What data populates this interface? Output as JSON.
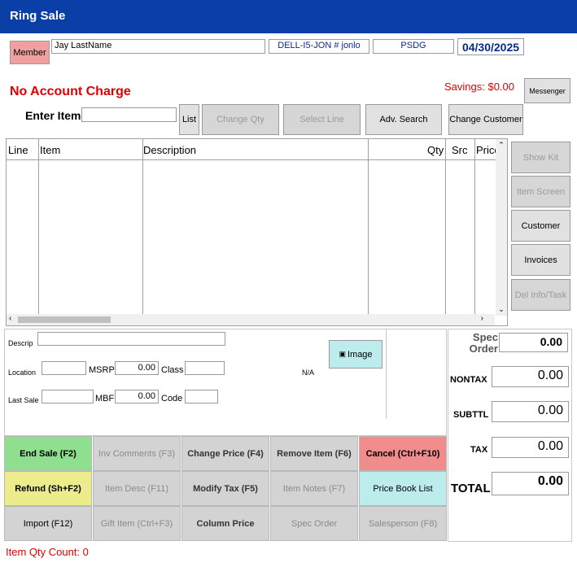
{
  "window": {
    "title": "Ring Sale"
  },
  "header": {
    "member_button": "Member",
    "member_name": "Jay LastName",
    "computer": "DELL-I5-JON # jonlo",
    "store": "PSDG",
    "date": "04/30/2025",
    "messenger_button": "Messenger"
  },
  "status": {
    "account_message": "No Account Charge",
    "savings": "Savings: $0.00"
  },
  "entry": {
    "label": "Enter Item",
    "value": "",
    "list_button": "List",
    "change_qty_button": "Change Qty",
    "select_line_button": "Select Line",
    "adv_search_button": "Adv. Search",
    "change_customer_button": "Change Customer"
  },
  "grid": {
    "columns": [
      "Line",
      "Item",
      "Description",
      "Qty",
      "Src",
      "Price"
    ],
    "rows": []
  },
  "side_buttons": {
    "show_kit": "Show Kit",
    "item_screen": "Item Screen",
    "customer": "Customer",
    "invoices": "Invoices",
    "del_info": "Del Info/Task"
  },
  "detail": {
    "descrip_label": "Descrip",
    "location_label": "Location",
    "msrp_label": "MSRP",
    "msrp_value": "0.00",
    "class_label": "Class",
    "last_sale_label": "Last Sale",
    "mbf_label": "MBF",
    "mbf_value": "0.00",
    "code_label": "Code",
    "na_text": "N/A",
    "image_button": "Image"
  },
  "totals": {
    "spec_order_label": "Spec Order",
    "spec_order_value": "0.00",
    "nontax_label": "NONTAX",
    "nontax_value": "0.00",
    "subttl_label": "SUBTTL",
    "subttl_value": "0.00",
    "tax_label": "TAX",
    "tax_value": "0.00",
    "total_label": "TOTAL",
    "total_value": "0.00"
  },
  "function_buttons": {
    "end_sale": "End Sale (F2)",
    "inv_comments": "Inv Comments (F3)",
    "change_price": "Change Price (F4)",
    "remove_item": "Remove Item (F6)",
    "cancel": "Cancel (Ctrl+F10)",
    "refund": "Refund (Sh+F2)",
    "item_desc": "Item Desc (F11)",
    "modify_tax": "Modify Tax (F5)",
    "item_notes": "Item Notes (F7)",
    "price_book_list": "Price Book List",
    "import": "Import (F12)",
    "gift_item": "Gift Item (Ctrl+F3)",
    "column_price": "Column Price",
    "spec_order": "Spec Order",
    "salesperson": "Salesperson (F8)"
  },
  "footer": {
    "item_qty_count": "Item Qty Count: 0"
  },
  "colors": {
    "titlebar": "#0a3fa8",
    "alert_red": "#e00000",
    "end_sale_green": "#8ee08e",
    "cancel_red": "#f08c8c",
    "refund_yellow": "#ecec8c",
    "price_book_cyan": "#bdecec",
    "member_pink": "#f0a0a0"
  }
}
